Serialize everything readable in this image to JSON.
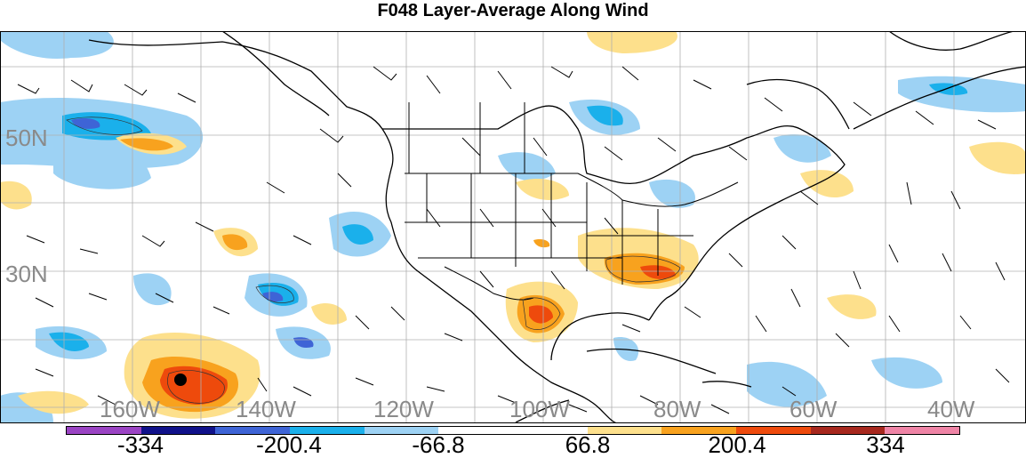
{
  "title": "F048 Layer-Average Along Wind",
  "map": {
    "lat_labels": [
      "50N",
      "30N"
    ],
    "lon_labels": [
      "160W",
      "140W",
      "120W",
      "100W",
      "80W",
      "60W",
      "40W"
    ],
    "marker": "black-dot"
  },
  "colorbar": {
    "colors": [
      "#9b44c4",
      "#10118a",
      "#3e64d6",
      "#1ab0eb",
      "#9dd2f4",
      "#ffffff",
      "#ffffff",
      "#fde08c",
      "#f8a21e",
      "#ee4a0c",
      "#a7281e",
      "#ef84a6"
    ],
    "labels": [
      "-334",
      "-200.4",
      "-66.8",
      "66.8",
      "200.4",
      "334"
    ]
  }
}
